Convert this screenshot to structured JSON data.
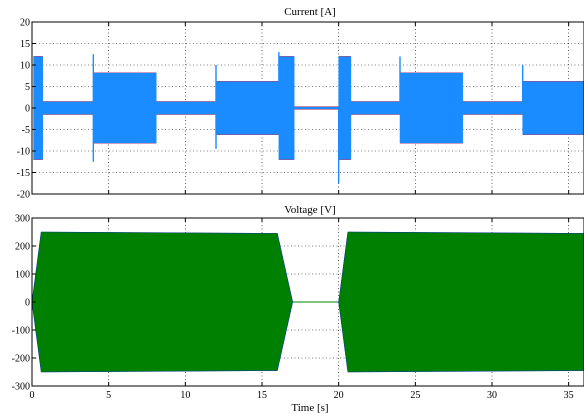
{
  "chart_data": [
    {
      "type": "line",
      "title": "Current [A]",
      "xlabel": "",
      "ylabel": "",
      "xlim": [
        0,
        36
      ],
      "ylim": [
        -20,
        20
      ],
      "xticks": [
        0,
        5,
        10,
        15,
        20,
        25,
        30,
        35
      ],
      "yticks": [
        20,
        15,
        10,
        5,
        0,
        -5,
        -10,
        -15,
        -20
      ],
      "grid": true,
      "colors": {
        "primary": "#1a8cff",
        "secondary": "#ff0000"
      },
      "series": [
        {
          "segments": [
            {
              "x": [
                0.1,
                0.7
              ],
              "amplitude": 12
            },
            {
              "x": [
                0.7,
                4.0
              ],
              "amplitude": 1.5
            },
            {
              "x": [
                4.0,
                8.1
              ],
              "amplitude": 8.2
            },
            {
              "x": [
                8.1,
                12.0
              ],
              "amplitude": 1.5
            },
            {
              "x": [
                12.0,
                16.1
              ],
              "amplitude": 6.2
            },
            {
              "x": [
                16.1,
                17.1
              ],
              "amplitude": 12
            },
            {
              "x": [
                17.1,
                20.0
              ],
              "amplitude": 0.3
            },
            {
              "x": [
                20.0,
                20.8
              ],
              "amplitude": 12
            },
            {
              "x": [
                20.8,
                24.0
              ],
              "amplitude": 1.5
            },
            {
              "x": [
                24.0,
                28.1
              ],
              "amplitude": 8.2
            },
            {
              "x": [
                28.1,
                32.0
              ],
              "amplitude": 1.5
            },
            {
              "x": [
                32.0,
                36.0
              ],
              "amplitude": 6.2
            }
          ],
          "spikes": [
            {
              "x": 4.0,
              "value": 12.5
            },
            {
              "x": 4.0,
              "value": -12.5
            },
            {
              "x": 12.0,
              "value": 10
            },
            {
              "x": 12.0,
              "value": -9.5
            },
            {
              "x": 16.1,
              "value": 13
            },
            {
              "x": 20.0,
              "value": -17.5
            },
            {
              "x": 24.0,
              "value": 12
            },
            {
              "x": 32.0,
              "value": 10
            }
          ]
        }
      ]
    },
    {
      "type": "line",
      "title": "Voltage [V]",
      "xlabel": "Time [s]",
      "ylabel": "",
      "xlim": [
        0,
        36
      ],
      "ylim": [
        -300,
        300
      ],
      "xticks": [
        0,
        5,
        10,
        15,
        20,
        25,
        30,
        35
      ],
      "yticks": [
        300,
        200,
        100,
        0,
        -100,
        -200,
        -300
      ],
      "grid": true,
      "colors": {
        "primary": "#008000",
        "secondary": "#0000ff"
      },
      "series": [
        {
          "segments": [
            {
              "x": [
                0.0,
                0.6
              ],
              "amplitude_start": 0,
              "amplitude_end": 250
            },
            {
              "x": [
                0.6,
                16.0
              ],
              "amplitude_start": 250,
              "amplitude_end": 245
            },
            {
              "x": [
                16.0,
                17.0
              ],
              "amplitude_start": 245,
              "amplitude_end": 0
            },
            {
              "x": [
                17.0,
                20.0
              ],
              "amplitude_start": 0,
              "amplitude_end": 0
            },
            {
              "x": [
                20.0,
                20.6
              ],
              "amplitude_start": 0,
              "amplitude_end": 250
            },
            {
              "x": [
                20.6,
                36.0
              ],
              "amplitude_start": 250,
              "amplitude_end": 245
            }
          ]
        }
      ]
    }
  ]
}
